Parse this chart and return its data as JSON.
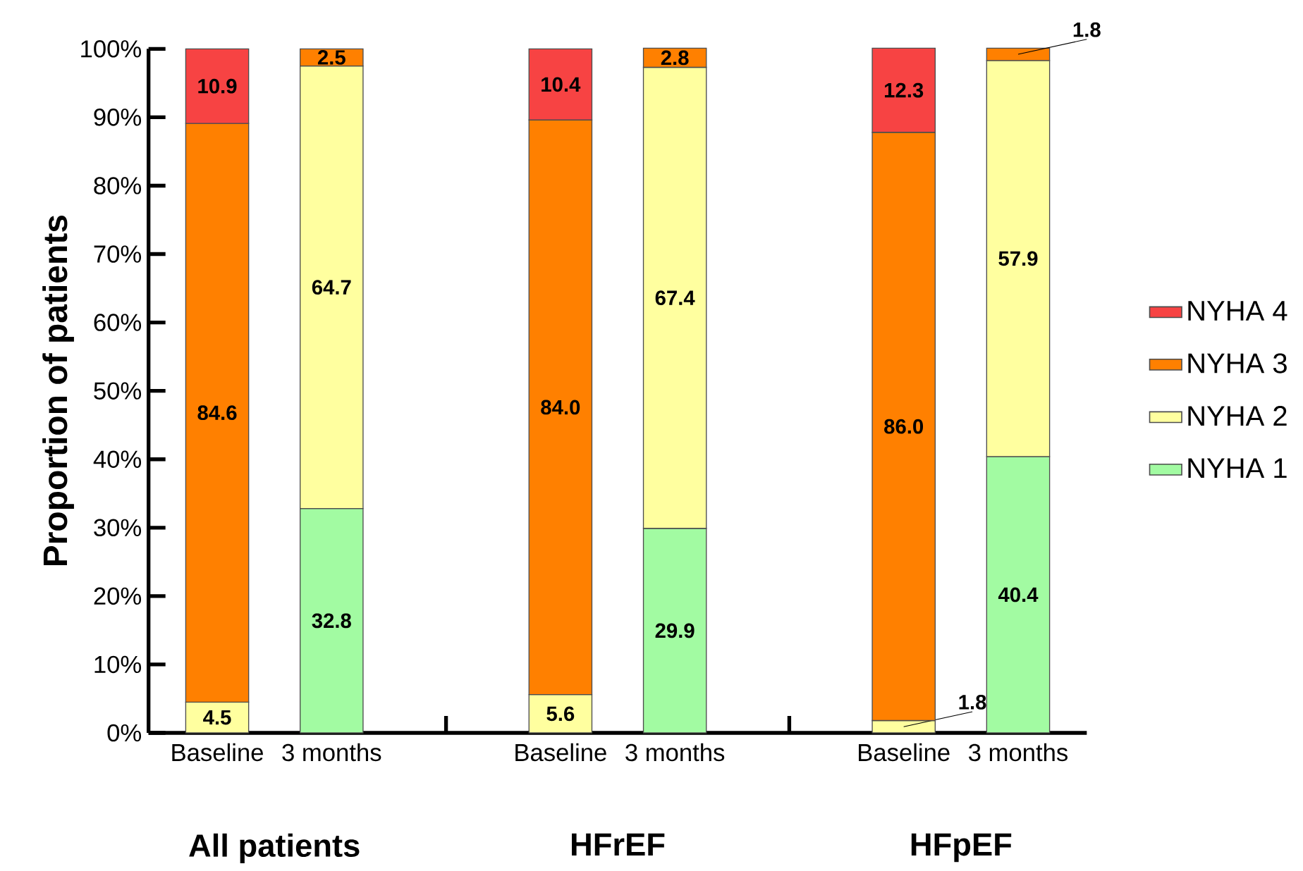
{
  "chart_data": {
    "type": "bar",
    "stacked": true,
    "ylabel": "Proportion of patients",
    "categories": [
      "Baseline",
      "3 months",
      null,
      "Baseline",
      "3 months",
      null,
      "Baseline",
      "3 months"
    ],
    "annotations": [
      "All patients",
      "HFrEF",
      "HFpEF"
    ],
    "series": [
      {
        "name": "NYHA 1",
        "color": "#a2fba2",
        "values": [
          null,
          32.8,
          null,
          null,
          29.9,
          null,
          null,
          40.4
        ],
        "value_labels": [
          null,
          "32.8",
          null,
          null,
          "29.9",
          null,
          null,
          "40.4"
        ]
      },
      {
        "name": "NYHA 2",
        "color": "#ffff9f",
        "values": [
          4.5,
          64.7,
          null,
          5.6,
          67.4,
          null,
          1.8,
          57.9
        ],
        "value_labels": [
          "4.5",
          "64.7",
          null,
          "5.6",
          "67.4",
          null,
          "1.8",
          "57.9"
        ]
      },
      {
        "name": "NYHA 3",
        "color": "#ff8000",
        "values": [
          84.6,
          2.5,
          null,
          84.0,
          2.8,
          null,
          86.0,
          1.8
        ],
        "value_labels": [
          "84.6",
          "2.5",
          null,
          "84.0",
          "2.8",
          null,
          "86.0",
          "1.8"
        ]
      },
      {
        "name": "NYHA 4",
        "color": "#f74343",
        "values": [
          10.9,
          null,
          null,
          10.4,
          null,
          null,
          12.3,
          null
        ],
        "value_labels": [
          "10.9",
          null,
          null,
          "10.4",
          null,
          null,
          "12.3",
          null
        ]
      }
    ],
    "ylim": [
      0,
      100
    ],
    "yticks": [
      {
        "value": 0,
        "label": "0%"
      },
      {
        "value": 10,
        "label": "10%"
      },
      {
        "value": 20,
        "label": "20%"
      },
      {
        "value": 30,
        "label": "30%"
      },
      {
        "value": 40,
        "label": "40%"
      },
      {
        "value": 50,
        "label": "50%"
      },
      {
        "value": 60,
        "label": "60%"
      },
      {
        "value": 70,
        "label": "70%"
      },
      {
        "value": 80,
        "label": "80%"
      },
      {
        "value": 90,
        "label": "90%"
      },
      {
        "value": 100,
        "label": "100%"
      }
    ],
    "legend": "right",
    "grid": false
  }
}
